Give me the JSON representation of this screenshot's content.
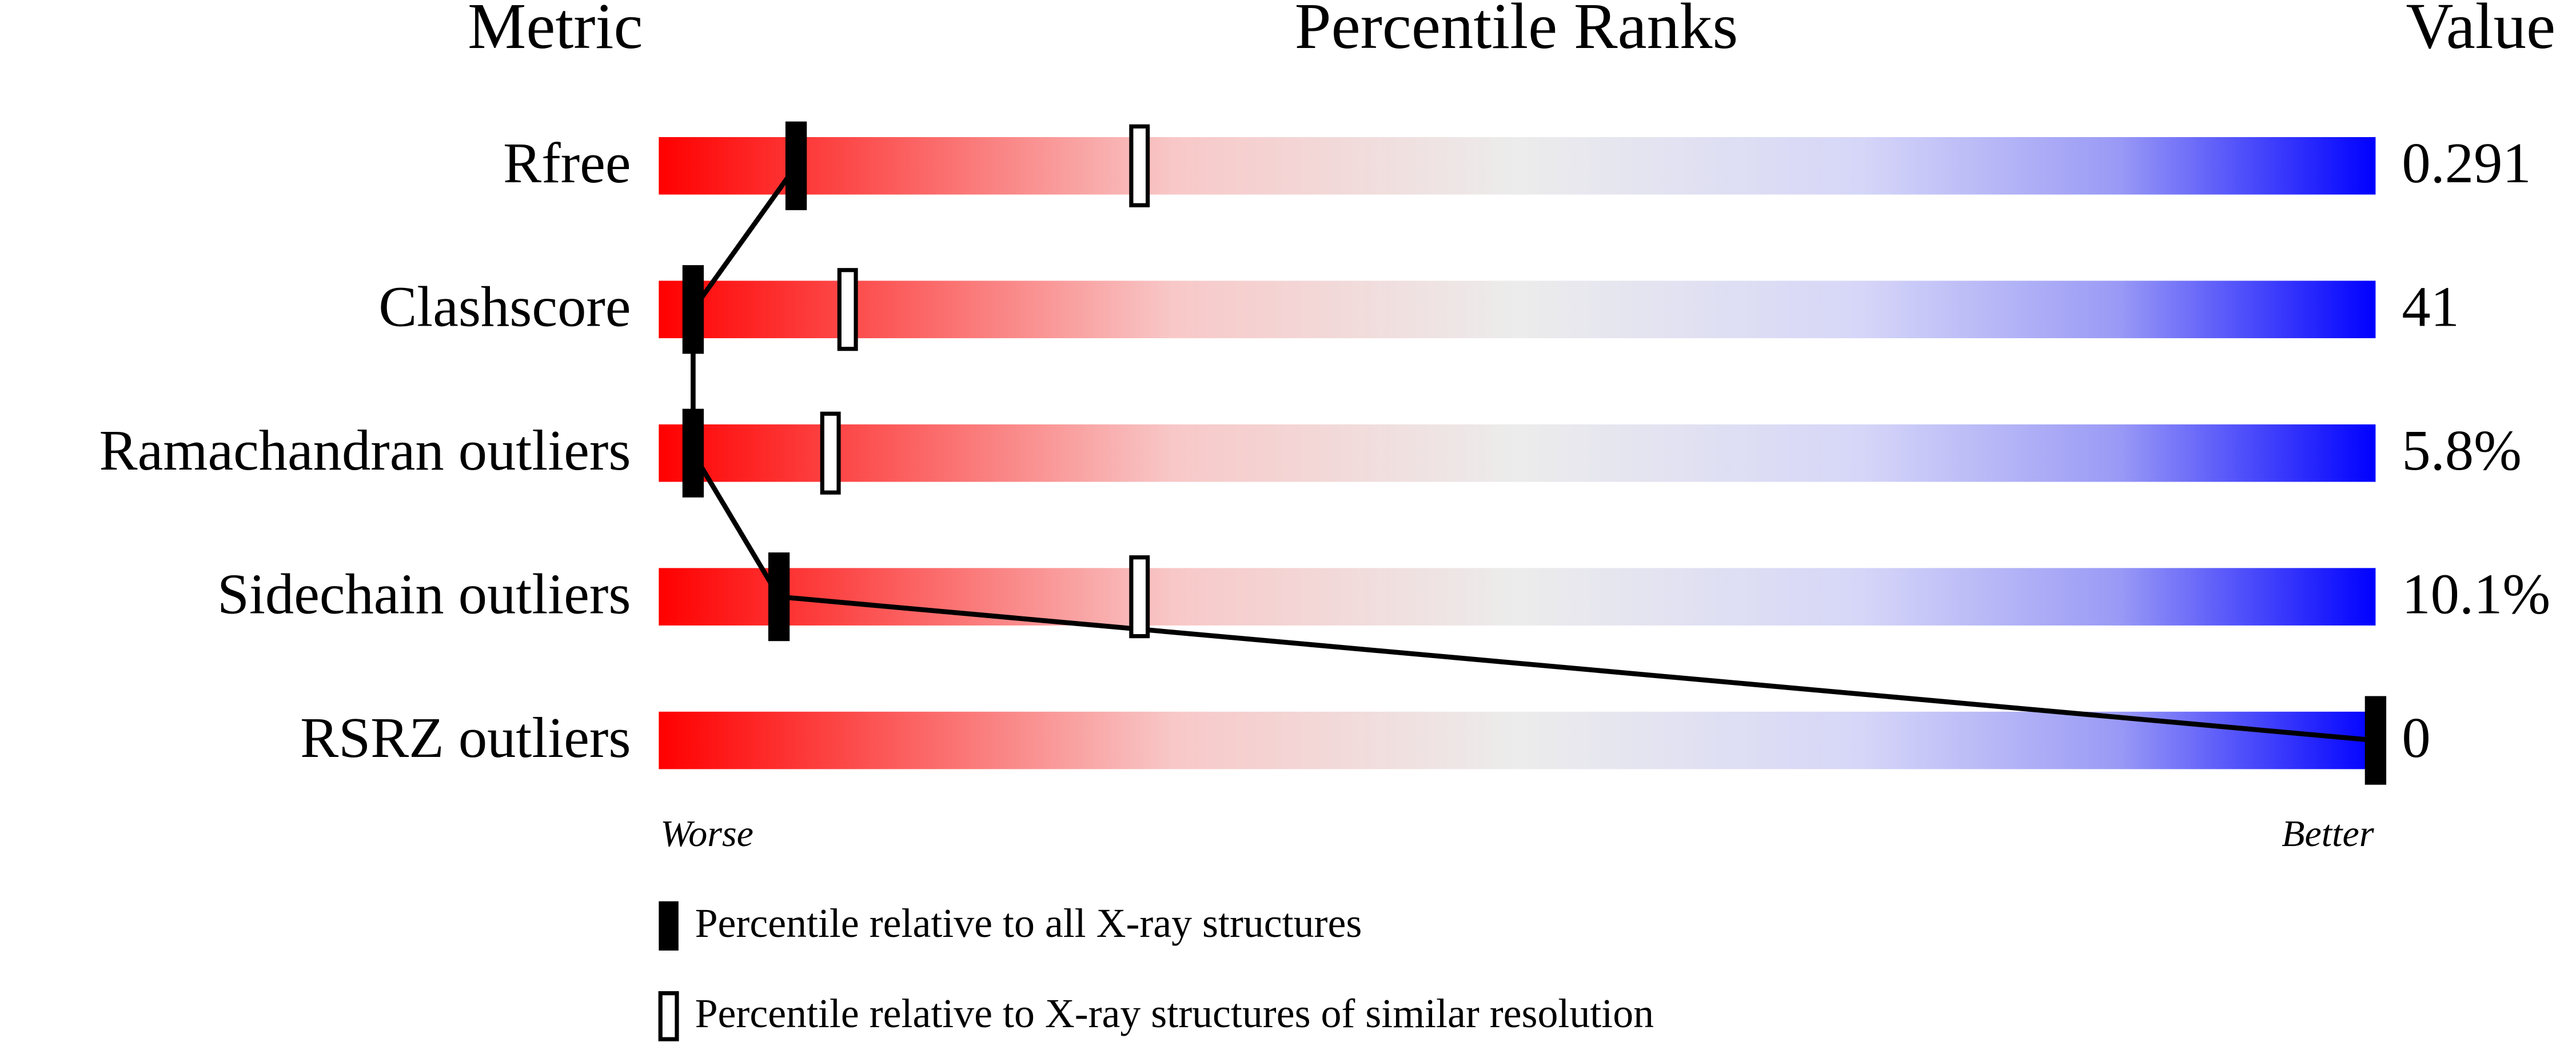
{
  "chart_data": {
    "type": "percentile-slider",
    "column_titles": [
      "Metric",
      "Percentile Ranks",
      "Value"
    ],
    "categories": [
      "Rfree",
      "Clashscore",
      "Ramachandran outliers",
      "Sidechain outliers",
      "RSRZ outliers"
    ],
    "metric_values": [
      "0.291",
      "41",
      "5.8%",
      "10.1%",
      "0"
    ],
    "xlim": [
      0,
      100
    ],
    "x_end_labels": [
      "Worse",
      "Better"
    ],
    "series": [
      {
        "name": "Percentile relative to all X-ray structures",
        "color": "#000000",
        "filled": true,
        "values": [
          8,
          2,
          2,
          7,
          100
        ]
      },
      {
        "name": "Percentile relative to X-ray structures of similar resolution",
        "color": "#000000",
        "filled": false,
        "values": [
          28,
          11,
          10,
          28,
          null
        ]
      }
    ]
  }
}
